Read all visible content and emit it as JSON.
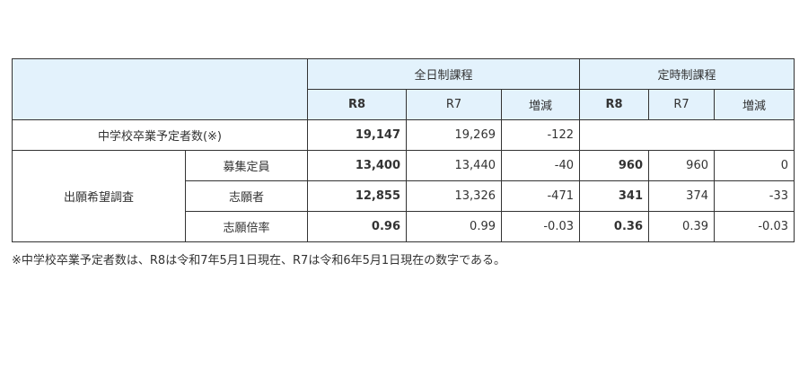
{
  "header": {
    "group_fulltime": "全日制課程",
    "group_parttime": "定時制課程",
    "cols": [
      "R8",
      "R7",
      "増減"
    ]
  },
  "rows": {
    "graduates": {
      "label": "中学校卒業予定者数(※)",
      "fulltime": [
        "19,147",
        "19,269",
        "-122"
      ]
    },
    "survey_label": "出願希望調査",
    "capacity": {
      "label": "募集定員",
      "fulltime": [
        "13,400",
        "13,440",
        "-40"
      ],
      "parttime": [
        "960",
        "960",
        "0"
      ]
    },
    "applicants": {
      "label": "志願者",
      "fulltime": [
        "12,855",
        "13,326",
        "-471"
      ],
      "parttime": [
        "341",
        "374",
        "-33"
      ]
    },
    "ratio": {
      "label": "志願倍率",
      "fulltime": [
        "0.96",
        "0.99",
        "-0.03"
      ],
      "parttime": [
        "0.36",
        "0.39",
        "-0.03"
      ]
    }
  },
  "footnote": "※中学校卒業予定者数は、R8は令和7年5月1日現在、R7は令和6年5月1日現在の数字である。",
  "colors": {
    "header_bg": "#e3f2fc",
    "border": "#333333"
  }
}
